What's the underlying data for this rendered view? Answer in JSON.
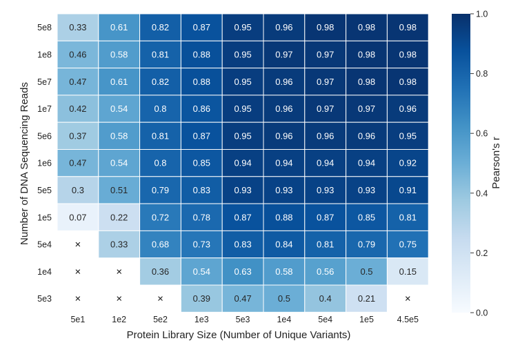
{
  "chart_data": {
    "type": "heatmap",
    "title": "",
    "xlabel": "Protein Library Size (Number of Unique Variants)",
    "ylabel": "Number of DNA Sequencing Reads",
    "x_categories": [
      "5e1",
      "1e2",
      "5e2",
      "1e3",
      "5e3",
      "1e4",
      "5e4",
      "1e5",
      "4.5e5"
    ],
    "y_categories": [
      "5e8",
      "1e8",
      "5e7",
      "1e7",
      "5e6",
      "1e6",
      "5e5",
      "1e5",
      "5e4",
      "1e4",
      "5e3"
    ],
    "values": [
      [
        0.33,
        0.61,
        0.82,
        0.87,
        0.95,
        0.96,
        0.98,
        0.98,
        0.98
      ],
      [
        0.46,
        0.58,
        0.81,
        0.88,
        0.95,
        0.97,
        0.97,
        0.98,
        0.98
      ],
      [
        0.47,
        0.61,
        0.82,
        0.88,
        0.95,
        0.96,
        0.97,
        0.98,
        0.98
      ],
      [
        0.42,
        0.54,
        0.8,
        0.86,
        0.95,
        0.96,
        0.97,
        0.97,
        0.96
      ],
      [
        0.37,
        0.58,
        0.81,
        0.87,
        0.95,
        0.96,
        0.96,
        0.96,
        0.95
      ],
      [
        0.47,
        0.54,
        0.8,
        0.85,
        0.94,
        0.94,
        0.94,
        0.94,
        0.92
      ],
      [
        0.3,
        0.51,
        0.79,
        0.83,
        0.93,
        0.93,
        0.93,
        0.93,
        0.91
      ],
      [
        0.07,
        0.22,
        0.72,
        0.78,
        0.87,
        0.88,
        0.87,
        0.85,
        0.81
      ],
      [
        null,
        0.33,
        0.68,
        0.73,
        0.83,
        0.84,
        0.81,
        0.79,
        0.75
      ],
      [
        null,
        null,
        0.36,
        0.54,
        0.63,
        0.58,
        0.56,
        0.5,
        0.15
      ],
      [
        null,
        null,
        null,
        0.39,
        0.47,
        0.5,
        0.4,
        0.21,
        null
      ]
    ],
    "missing_marker": "×",
    "colorbar": {
      "label": "Pearson's r",
      "range": [
        0.0,
        1.0
      ],
      "ticks": [
        "0.0",
        "0.2",
        "0.4",
        "0.6",
        "0.8",
        "1.0"
      ]
    },
    "colormap": "Blues"
  }
}
